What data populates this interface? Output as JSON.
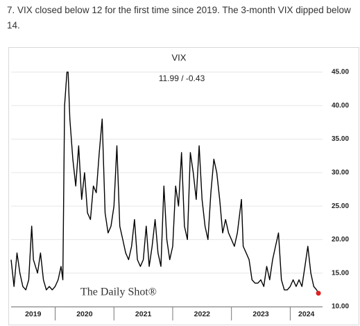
{
  "caption": "7. VIX closed below 12 for the first time since 2019. The 3-month VIX dipped below 14.",
  "chart_data": {
    "type": "line",
    "title": "VIX",
    "subtitle": "11.99 / -0.43",
    "watermark": "The Daily Shot®",
    "xlim": [
      2019.25,
      2024.55
    ],
    "xticks": [
      2020,
      2021,
      2022,
      2023,
      2024
    ],
    "year_labels": [
      "2019",
      "2020",
      "2021",
      "2022",
      "2023",
      "2024"
    ],
    "ylim": [
      10,
      45
    ],
    "yticks": [
      {
        "value": 10,
        "label": "10.00"
      },
      {
        "value": 15,
        "label": "15.00"
      },
      {
        "value": 20,
        "label": "20.00"
      },
      {
        "value": 25,
        "label": "25.00"
      },
      {
        "value": 30,
        "label": "30.00"
      },
      {
        "value": 35,
        "label": "35.00"
      },
      {
        "value": 40,
        "label": "40.00"
      },
      {
        "value": 45,
        "label": "45.00"
      }
    ],
    "grid": true,
    "last_point_color": "#e02020",
    "series": [
      {
        "name": "VIX",
        "color": "#000000",
        "x": [
          2019.25,
          2019.3,
          2019.35,
          2019.4,
          2019.45,
          2019.5,
          2019.55,
          2019.6,
          2019.63,
          2019.7,
          2019.75,
          2019.8,
          2019.85,
          2019.9,
          2019.95,
          2020.0,
          2020.05,
          2020.1,
          2020.13,
          2020.16,
          2020.2,
          2020.22,
          2020.25,
          2020.3,
          2020.35,
          2020.4,
          2020.45,
          2020.5,
          2020.55,
          2020.6,
          2020.65,
          2020.7,
          2020.75,
          2020.8,
          2020.85,
          2020.9,
          2020.95,
          2021.0,
          2021.05,
          2021.1,
          2021.15,
          2021.2,
          2021.25,
          2021.3,
          2021.35,
          2021.4,
          2021.45,
          2021.5,
          2021.55,
          2021.6,
          2021.65,
          2021.7,
          2021.75,
          2021.8,
          2021.85,
          2021.9,
          2021.95,
          2022.0,
          2022.05,
          2022.1,
          2022.15,
          2022.2,
          2022.25,
          2022.3,
          2022.35,
          2022.4,
          2022.45,
          2022.5,
          2022.55,
          2022.6,
          2022.65,
          2022.7,
          2022.75,
          2022.8,
          2022.85,
          2022.9,
          2022.95,
          2023.0,
          2023.05,
          2023.1,
          2023.17,
          2023.2,
          2023.25,
          2023.3,
          2023.35,
          2023.4,
          2023.45,
          2023.5,
          2023.55,
          2023.6,
          2023.65,
          2023.7,
          2023.75,
          2023.8,
          2023.85,
          2023.9,
          2023.95,
          2024.0,
          2024.05,
          2024.1,
          2024.15,
          2024.2,
          2024.25,
          2024.3,
          2024.35,
          2024.4,
          2024.45,
          2024.48
        ],
        "values": [
          17,
          13,
          18,
          15,
          13,
          12.5,
          14,
          22,
          17,
          15,
          18,
          14,
          12.5,
          13,
          12.5,
          13,
          14,
          16,
          14,
          40,
          45,
          45,
          38,
          32,
          28,
          34,
          26,
          30,
          24,
          23,
          28,
          27,
          33,
          38,
          24,
          21,
          22,
          25,
          34,
          22,
          20,
          18,
          17,
          19,
          23,
          17,
          16,
          17,
          22,
          16,
          19,
          23,
          18,
          16,
          28,
          20,
          17,
          19,
          28,
          25,
          33,
          22,
          20,
          33,
          30,
          26,
          34,
          26,
          22,
          20,
          27,
          32,
          30,
          26,
          21,
          23,
          21,
          20,
          19,
          21,
          26,
          19,
          18,
          17,
          14,
          13.5,
          13.5,
          14,
          13,
          16,
          14,
          17,
          19,
          21,
          14,
          12.5,
          12.5,
          13,
          14,
          13,
          14,
          13,
          16,
          19,
          15,
          13,
          12.5,
          11.99
        ]
      }
    ]
  }
}
